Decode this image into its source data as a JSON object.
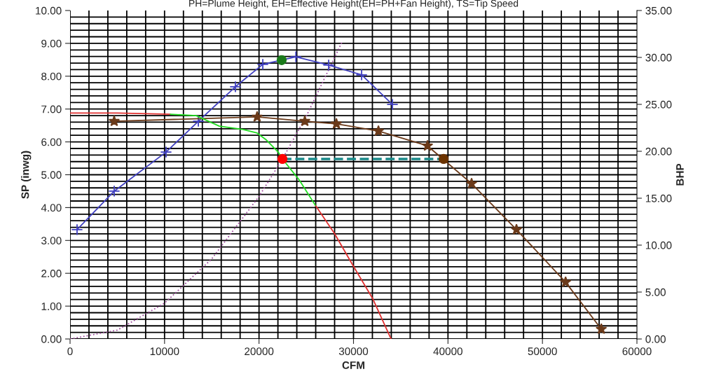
{
  "chart_data": {
    "type": "line",
    "title": "PH=Plume Height, EH=Effective Height(EH=PH+Fan Height), TS=Tip Speed",
    "xlabel": "CFM",
    "ylabel": "SP (inwg)",
    "y2label": "BHP",
    "xlim": [
      0,
      60000
    ],
    "xticks": [
      0,
      10000,
      20000,
      30000,
      40000,
      50000,
      60000
    ],
    "ylim": [
      0,
      10
    ],
    "yticks": [
      {
        "value": 0,
        "label": "0.00"
      },
      {
        "value": 1,
        "label": "1.00"
      },
      {
        "value": 2,
        "label": "2.00"
      },
      {
        "value": 3,
        "label": "3.00"
      },
      {
        "value": 4,
        "label": "4.00"
      },
      {
        "value": 5,
        "label": "5.00"
      },
      {
        "value": 6,
        "label": "6.00"
      },
      {
        "value": 7,
        "label": "7.00"
      },
      {
        "value": 8,
        "label": "8.00"
      },
      {
        "value": 9,
        "label": "9.00"
      },
      {
        "value": 10,
        "label": "10.00"
      }
    ],
    "y2lim": [
      0,
      35
    ],
    "y2ticks": [
      {
        "value": 0,
        "label": "0.00"
      },
      {
        "value": 5,
        "label": "5.00"
      },
      {
        "value": 10,
        "label": "10.00"
      },
      {
        "value": 15,
        "label": "15.00"
      },
      {
        "value": 20,
        "label": "20.00"
      },
      {
        "value": 25,
        "label": "25.00"
      },
      {
        "value": 30,
        "label": "30.00"
      },
      {
        "value": 35,
        "label": "35.00"
      }
    ],
    "grid": true,
    "legend": false,
    "series": [
      {
        "color": "#a050a0",
        "line_style": "dotted",
        "marker": "none",
        "x": [
          0,
          5000,
          10000,
          15000,
          20000,
          22480,
          25000,
          28780
        ],
        "values": [
          0,
          0.27,
          1.09,
          2.44,
          4.34,
          5.48,
          6.78,
          9.04
        ]
      },
      {
        "color": "#4040c0",
        "line_style": "solid",
        "marker": "cross",
        "x": [
          740,
          4670,
          10160,
          13580,
          17500,
          20400,
          23900,
          27370,
          30860,
          34120
        ],
        "values": [
          3.33,
          4.5,
          5.69,
          6.63,
          7.68,
          8.36,
          8.59,
          8.34,
          8.04,
          7.14
        ]
      },
      {
        "color": "#6b3a1a",
        "line_style": "solid",
        "marker": "star",
        "x": [
          4670,
          19800,
          24850,
          28190,
          32640,
          37830,
          42500,
          47250,
          52450,
          56230
        ],
        "values": [
          6.63,
          6.76,
          6.63,
          6.55,
          6.33,
          5.88,
          4.73,
          3.33,
          1.73,
          0.3
        ]
      },
      {
        "color": "#e03030",
        "line_style": "solid",
        "marker": "none",
        "x": [
          0,
          5000,
          10610,
          13350,
          15800,
          18320,
          19800,
          20770,
          22030,
          22480,
          24260,
          25960,
          27970,
          29900,
          32050,
          33980
        ],
        "values": [
          6.88,
          6.88,
          6.84,
          null,
          null,
          null,
          null,
          null,
          null,
          null,
          null,
          4.07,
          3.22,
          2.26,
          1.22,
          0
        ]
      },
      {
        "color": "#22dd22",
        "line_style": "solid",
        "marker": "none",
        "x": [
          10610,
          13350,
          15800,
          18320,
          19800,
          20770,
          22030,
          22480,
          24260,
          25960
        ],
        "values": [
          6.84,
          6.8,
          6.48,
          6.38,
          6.27,
          6.06,
          5.69,
          5.48,
          4.84,
          4.07
        ]
      },
      {
        "color": "#1a8a8a",
        "line_style": "dashed",
        "marker": "none",
        "x": [
          22480,
          39540
        ],
        "values": [
          5.48,
          5.48
        ]
      },
      {
        "type": "scatter",
        "color": "#1a7a1a",
        "marker": "circle",
        "x": [
          22400
        ],
        "values": [
          8.49
        ]
      },
      {
        "type": "scatter",
        "color": "#ff0000",
        "marker": "circle",
        "x": [
          22480
        ],
        "values": [
          5.48
        ]
      },
      {
        "type": "scatter",
        "color": "#6b3300",
        "marker": "circle",
        "x": [
          39540
        ],
        "values": [
          5.48
        ]
      }
    ]
  }
}
